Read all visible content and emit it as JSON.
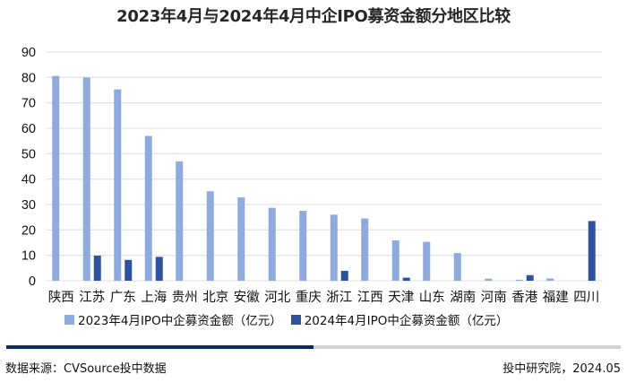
{
  "title": "2023年4月与2024年4月中企IPO募资金额分地区比较",
  "legend": {
    "series1_label": "2023年4月IPO中企募资金额（亿元）",
    "series2_label": "2024年4月IPO中企募资金额（亿元）"
  },
  "colors": {
    "series1": "#8faadc",
    "series2": "#2f52a0",
    "grid": "#e5e5e5",
    "accent_bar": "#0c2b63",
    "accent_track": "#d3d3d3"
  },
  "footer": {
    "source": "数据来源：CVSource投中数据",
    "credit": "投中研究院，2024.05"
  },
  "chart_data": {
    "type": "bar",
    "title": "2023年4月与2024年4月中企IPO募资金额分地区比较",
    "xlabel": "",
    "ylabel": "",
    "ylim": [
      0,
      90
    ],
    "yticks": [
      0,
      10,
      20,
      30,
      40,
      50,
      60,
      70,
      80,
      90
    ],
    "grid": true,
    "legend_position": "bottom",
    "categories": [
      "陕西",
      "江苏",
      "广东",
      "上海",
      "贵州",
      "北京",
      "安徽",
      "河北",
      "重庆",
      "浙江",
      "江西",
      "天津",
      "山东",
      "湖南",
      "河南",
      "香港",
      "福建",
      "四川"
    ],
    "series": [
      {
        "name": "2023年4月IPO中企募资金额（亿元）",
        "values": [
          80.6,
          80.0,
          75.3,
          57.0,
          47.0,
          35.2,
          32.8,
          28.7,
          27.5,
          26.0,
          24.5,
          15.9,
          15.3,
          10.9,
          0.8,
          0.4,
          0.9,
          0
        ]
      },
      {
        "name": "2024年4月IPO中企募资金额（亿元）",
        "values": [
          0,
          9.9,
          8.2,
          9.4,
          0,
          0,
          0,
          0,
          0,
          3.9,
          0,
          1.2,
          0,
          0,
          0,
          2.2,
          0,
          23.5
        ]
      }
    ]
  }
}
